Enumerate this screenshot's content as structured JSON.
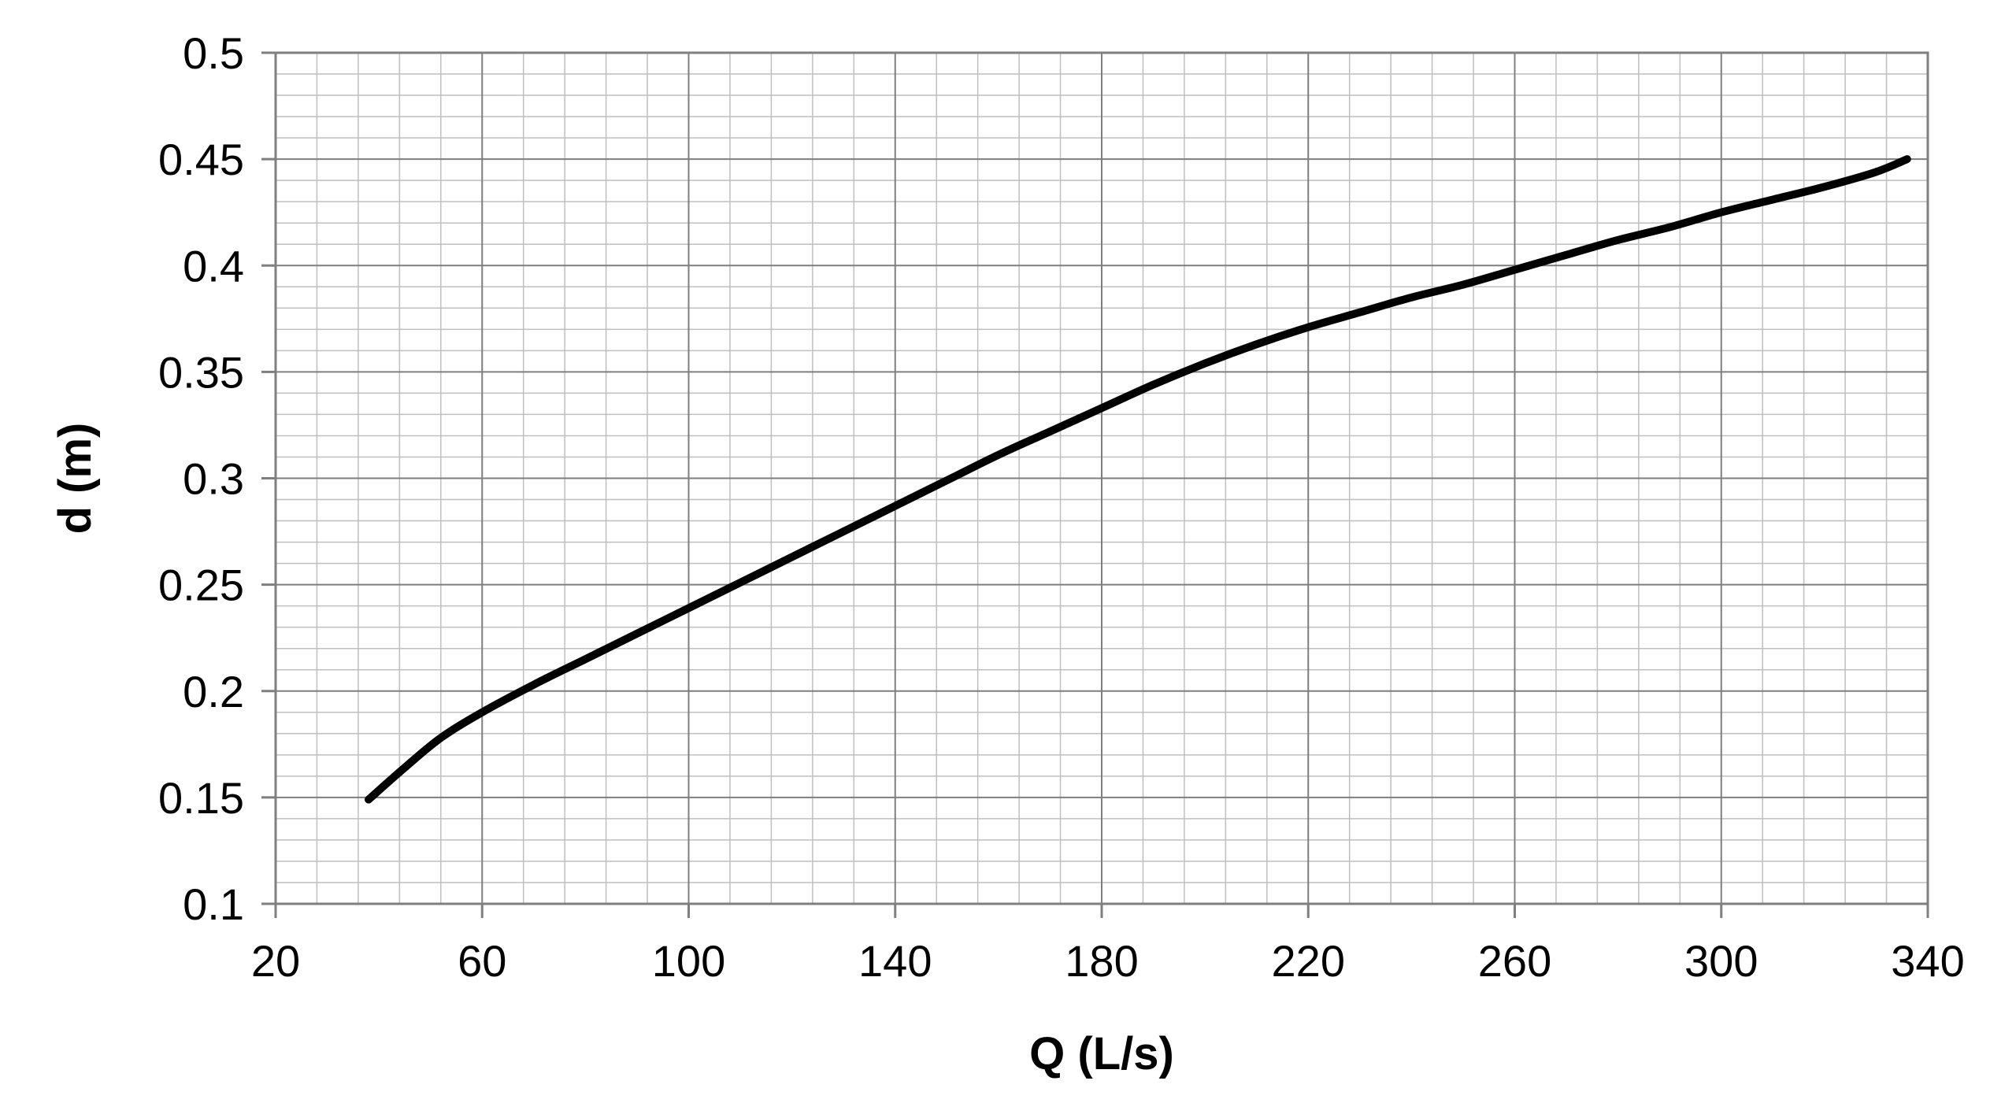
{
  "chart_data": {
    "type": "line",
    "title": "",
    "xlabel": "Q (L/s)",
    "ylabel": "d  (m)",
    "xlim": [
      20,
      340
    ],
    "ylim": [
      0.1,
      0.5
    ],
    "x_ticks": [
      20,
      60,
      100,
      140,
      180,
      220,
      260,
      300,
      340
    ],
    "y_ticks": [
      0.1,
      0.15,
      0.2,
      0.25,
      0.3,
      0.35,
      0.4,
      0.45,
      0.5
    ],
    "x_tick_labels": [
      "20",
      "60",
      "100",
      "140",
      "180",
      "220",
      "260",
      "300",
      "340"
    ],
    "y_tick_labels": [
      "0.1",
      "0.15",
      "0.2",
      "0.25",
      "0.3",
      "0.35",
      "0.4",
      "0.45",
      "0.5"
    ],
    "x_minor_step": 8,
    "y_minor_step": 0.01,
    "grid": true,
    "legend": "none",
    "colors": {
      "line": "#000000",
      "major_grid": "#7f7f7f",
      "minor_grid": "#bfbfbf",
      "plot_border": "#7f7f7f"
    },
    "series": [
      {
        "x": [
          38,
          45,
          52,
          60,
          70,
          80,
          90,
          100,
          110,
          120,
          130,
          140,
          150,
          160,
          170,
          180,
          190,
          200,
          210,
          220,
          230,
          240,
          250,
          260,
          270,
          280,
          290,
          300,
          310,
          320,
          330,
          336
        ],
        "values": [
          0.149,
          0.164,
          0.178,
          0.19,
          0.203,
          0.215,
          0.227,
          0.239,
          0.251,
          0.263,
          0.275,
          0.287,
          0.299,
          0.311,
          0.322,
          0.333,
          0.344,
          0.354,
          0.363,
          0.371,
          0.378,
          0.385,
          0.391,
          0.398,
          0.405,
          0.412,
          0.418,
          0.425,
          0.431,
          0.437,
          0.444,
          0.45
        ]
      }
    ]
  }
}
